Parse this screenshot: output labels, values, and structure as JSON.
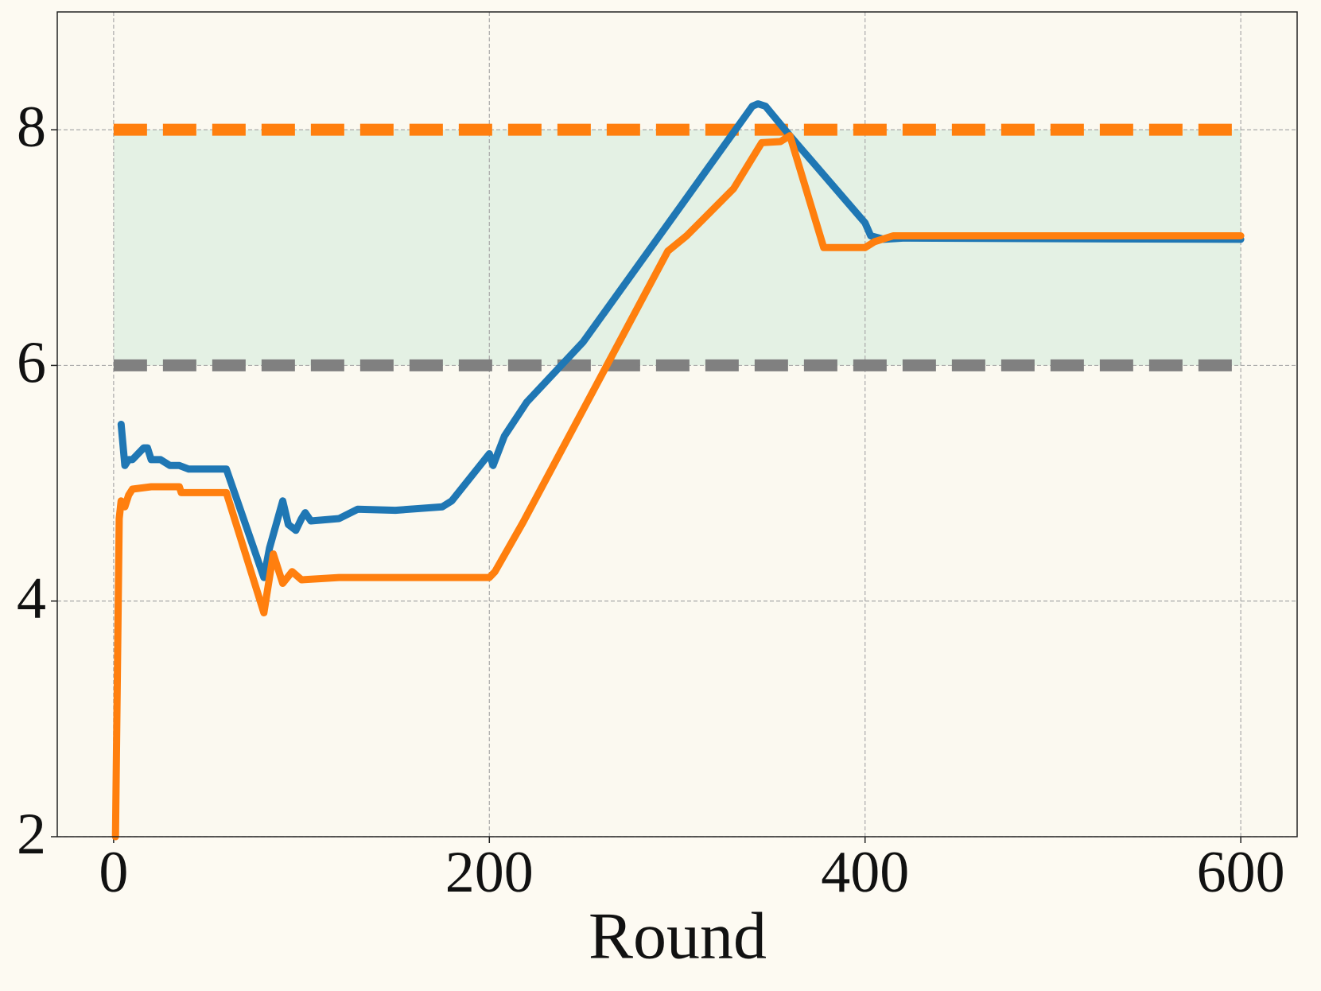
{
  "chart_data": {
    "type": "line",
    "xlabel": "Round",
    "xlim": [
      -30,
      630
    ],
    "ylim": [
      2,
      9
    ],
    "xticks": [
      0,
      200,
      400,
      600
    ],
    "yticks": [
      2,
      4,
      6,
      8
    ],
    "grid": true,
    "band": {
      "range": [
        6,
        8
      ],
      "color": "#e4f1e4"
    },
    "hlines": [
      {
        "value": 8,
        "color": "#ff7f0e"
      },
      {
        "value": 6,
        "color": "#808080"
      }
    ],
    "series": [
      {
        "color": "#1f77b4",
        "x": [
          4,
          6,
          8,
          10,
          13,
          16,
          18,
          20,
          25,
          30,
          35,
          40,
          60,
          80,
          83,
          90,
          93,
          97,
          100,
          102,
          105,
          120,
          130,
          150,
          175,
          180,
          200,
          202,
          208,
          220,
          250,
          300,
          340,
          343,
          347,
          360,
          400,
          403,
          410,
          420,
          600
        ],
        "values": [
          5.5,
          5.15,
          5.2,
          5.2,
          5.25,
          5.3,
          5.3,
          5.2,
          5.2,
          5.15,
          5.15,
          5.12,
          5.12,
          4.2,
          4.45,
          4.85,
          4.65,
          4.6,
          4.7,
          4.75,
          4.68,
          4.7,
          4.78,
          4.77,
          4.8,
          4.85,
          5.25,
          5.15,
          5.4,
          5.69,
          6.2,
          7.31,
          8.2,
          8.22,
          8.2,
          7.95,
          7.21,
          7.1,
          7.07,
          7.08,
          7.07
        ]
      },
      {
        "color": "#ff7f0e",
        "x": [
          1,
          3,
          4,
          6,
          8,
          10,
          20,
          35,
          36,
          60,
          80,
          85,
          90,
          95,
          100,
          120,
          200,
          203,
          218,
          295,
          305,
          330,
          345,
          355,
          360,
          378,
          400,
          405,
          415,
          600
        ],
        "values": [
          2,
          4.7,
          4.85,
          4.8,
          4.9,
          4.95,
          4.97,
          4.97,
          4.92,
          4.92,
          3.9,
          4.4,
          4.15,
          4.25,
          4.18,
          4.2,
          4.2,
          4.25,
          4.67,
          6.97,
          7.1,
          7.5,
          7.89,
          7.9,
          7.95,
          7.0,
          7.0,
          7.05,
          7.1,
          7.1
        ]
      }
    ]
  }
}
